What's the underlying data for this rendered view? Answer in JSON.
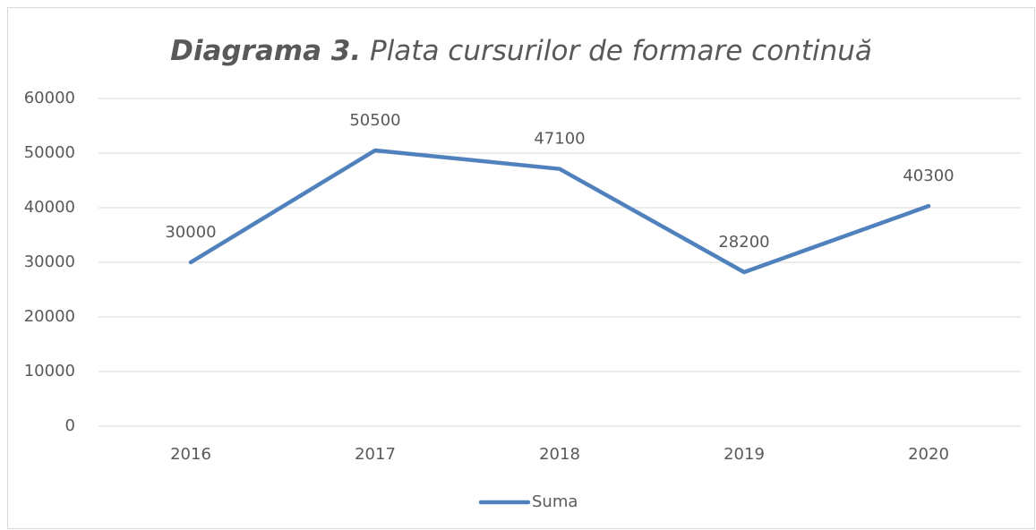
{
  "chart_data": {
    "type": "line",
    "title": {
      "label": "Diagrama 3.",
      "text": "Plata cursurilor de formare continuă"
    },
    "categories": [
      "2016",
      "2017",
      "2018",
      "2019",
      "2020"
    ],
    "series": [
      {
        "name": "Suma",
        "color": "#4f81bd",
        "values": [
          30000,
          50500,
          47100,
          28200,
          40300
        ]
      }
    ],
    "ylim": [
      0,
      60000
    ],
    "yticks": [
      0,
      10000,
      20000,
      30000,
      40000,
      50000,
      60000
    ],
    "grid": true,
    "legend": "bottom",
    "data_labels": true
  }
}
